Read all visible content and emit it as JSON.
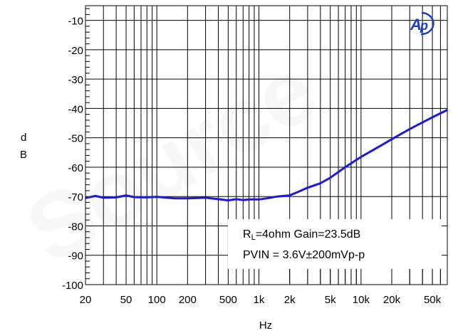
{
  "chart_data": {
    "type": "line",
    "title": "",
    "xlabel": "Hz",
    "ylabel_letters": [
      "d",
      "B"
    ],
    "x_scale": "log",
    "xlim": [
      20,
      70000
    ],
    "ylim": [
      -100,
      -5
    ],
    "x_ticks": [
      {
        "value": 20,
        "label": "20"
      },
      {
        "value": 50,
        "label": "50"
      },
      {
        "value": 100,
        "label": "100"
      },
      {
        "value": 200,
        "label": "200"
      },
      {
        "value": 500,
        "label": "500"
      },
      {
        "value": 1000,
        "label": "1k"
      },
      {
        "value": 2000,
        "label": "2k"
      },
      {
        "value": 5000,
        "label": "5k"
      },
      {
        "value": 10000,
        "label": "10k"
      },
      {
        "value": 20000,
        "label": "20k"
      },
      {
        "value": 50000,
        "label": "50k"
      }
    ],
    "y_ticks": [
      {
        "value": -10,
        "label": "-10"
      },
      {
        "value": -20,
        "label": "-20"
      },
      {
        "value": -30,
        "label": "-30"
      },
      {
        "value": -40,
        "label": "-40"
      },
      {
        "value": -50,
        "label": "-50"
      },
      {
        "value": -60,
        "label": "-60"
      },
      {
        "value": -70,
        "label": "-70"
      },
      {
        "value": -80,
        "label": "-80"
      },
      {
        "value": -90,
        "label": "-90"
      },
      {
        "value": -100,
        "label": "-100"
      }
    ],
    "grid": true,
    "series": [
      {
        "color": "#1a1adc",
        "x": [
          20,
          25,
          30,
          40,
          50,
          60,
          80,
          100,
          150,
          200,
          300,
          400,
          500,
          600,
          700,
          800,
          1000,
          1200,
          1500,
          2000,
          2500,
          3000,
          4000,
          5000,
          7000,
          10000,
          15000,
          20000,
          30000,
          50000,
          70000
        ],
        "y": [
          -70.5,
          -69.8,
          -70.4,
          -70.3,
          -69.6,
          -70.2,
          -70.3,
          -70.1,
          -70.6,
          -70.6,
          -70.4,
          -70.9,
          -71.3,
          -70.9,
          -71.2,
          -71.0,
          -71.0,
          -70.6,
          -70.0,
          -69.6,
          -68.2,
          -67.0,
          -65.5,
          -63.6,
          -60.0,
          -56.5,
          -53.0,
          -50.5,
          -47.0,
          -43.0,
          -40.5
        ]
      }
    ],
    "annotation": {
      "line1_main": "R",
      "line1_sub": "L",
      "line1_rest": "=4ohm Gain=23.5dB",
      "line2": "PVIN = 3.6V±200mVp-p"
    }
  },
  "logo": "ap-logo",
  "colors": {
    "grid": "#000000",
    "series": "#1a1adc",
    "logo": "#1a3fbf"
  }
}
